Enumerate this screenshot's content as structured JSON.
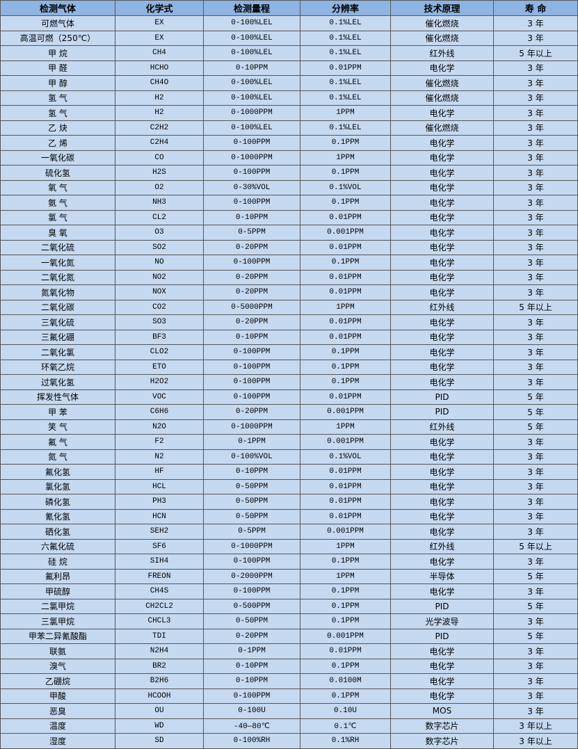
{
  "table": {
    "headers": [
      "检测气体",
      "化学式",
      "检测量程",
      "分辨率",
      "技术原理",
      "寿 命"
    ],
    "rows": [
      [
        "可燃气体",
        "EX",
        "0-100%LEL",
        "0.1%LEL",
        "催化燃烧",
        "3 年"
      ],
      [
        "高温可燃（250℃）",
        "EX",
        "0-100%LEL",
        "0.1%LEL",
        "催化燃烧",
        "3 年"
      ],
      [
        "甲 烷",
        "CH4",
        "0-100%LEL",
        "0.1%LEL",
        "红外线",
        "5 年以上"
      ],
      [
        "甲 醛",
        "HCHO",
        "0-10PPM",
        "0.01PPM",
        "电化学",
        "3 年"
      ],
      [
        "甲 醇",
        "CH4O",
        "0-100%LEL",
        "0.1%LEL",
        "催化燃烧",
        "3 年"
      ],
      [
        "氢 气",
        "H2",
        "0-100%LEL",
        "0.1%LEL",
        "催化燃烧",
        "3 年"
      ],
      [
        "氢 气",
        "H2",
        "0-1000PPM",
        "1PPM",
        "电化学",
        "3 年"
      ],
      [
        "乙 炔",
        "C2H2",
        "0-100%LEL",
        "0.1%LEL",
        "催化燃烧",
        "3 年"
      ],
      [
        "乙 烯",
        "C2H4",
        "0-100PPM",
        "0.1PPM",
        "电化学",
        "3 年"
      ],
      [
        "一氧化碳",
        "CO",
        "0-1000PPM",
        "1PPM",
        "电化学",
        "3 年"
      ],
      [
        "硫化氢",
        "H2S",
        "0-100PPM",
        "0.1PPM",
        "电化学",
        "3 年"
      ],
      [
        "氧 气",
        "O2",
        "0-30%VOL",
        "0.1%VOL",
        "电化学",
        "3 年"
      ],
      [
        "氨 气",
        "NH3",
        "0-100PPM",
        "0.1PPM",
        "电化学",
        "3 年"
      ],
      [
        "氯 气",
        "CL2",
        "0-10PPM",
        "0.01PPM",
        "电化学",
        "3 年"
      ],
      [
        "臭 氧",
        "O3",
        "0-5PPM",
        "0.001PPM",
        "电化学",
        "3 年"
      ],
      [
        "二氧化硫",
        "SO2",
        "0-20PPM",
        "0.01PPM",
        "电化学",
        "3 年"
      ],
      [
        "一氧化氮",
        "NO",
        "0-100PPM",
        "0.1PPM",
        "电化学",
        "3 年"
      ],
      [
        "二氧化氮",
        "NO2",
        "0-20PPM",
        "0.01PPM",
        "电化学",
        "3 年"
      ],
      [
        "氮氧化物",
        "NOX",
        "0-20PPM",
        "0.01PPM",
        "电化学",
        "3 年"
      ],
      [
        "二氧化碳",
        "CO2",
        "0-5000PPM",
        "1PPM",
        "红外线",
        "5 年以上"
      ],
      [
        "三氧化硫",
        "SO3",
        "0-20PPM",
        "0.01PPM",
        "电化学",
        "3 年"
      ],
      [
        "三氟化硼",
        "BF3",
        "0-10PPM",
        "0.01PPM",
        "电化学",
        "3 年"
      ],
      [
        "二氧化氯",
        "CLO2",
        "0-100PPM",
        "0.1PPM",
        "电化学",
        "3 年"
      ],
      [
        "环氧乙烷",
        "ETO",
        "0-100PPM",
        "0.1PPM",
        "电化学",
        "3 年"
      ],
      [
        "过氧化氢",
        "H2O2",
        "0-100PPM",
        "0.1PPM",
        "电化学",
        "3 年"
      ],
      [
        "挥发性气体",
        "VOC",
        "0-100PPM",
        "0.01PPM",
        "PID",
        "5 年"
      ],
      [
        "甲 苯",
        "C6H6",
        "0-20PPM",
        "0.001PPM",
        "PID",
        "5 年"
      ],
      [
        "笑 气",
        "N2O",
        "0-1000PPM",
        "1PPM",
        "红外线",
        "5 年"
      ],
      [
        "氟 气",
        "F2",
        "0-1PPM",
        "0.001PPM",
        "电化学",
        "3 年"
      ],
      [
        "氮 气",
        "N2",
        "0-100%VOL",
        "0.1%VOL",
        "电化学",
        "3 年"
      ],
      [
        "氟化氢",
        "HF",
        "0-10PPM",
        "0.01PPM",
        "电化学",
        "3 年"
      ],
      [
        "氯化氢",
        "HCL",
        "0-50PPM",
        "0.01PPM",
        "电化学",
        "3 年"
      ],
      [
        "磷化氢",
        "PH3",
        "0-50PPM",
        "0.01PPM",
        "电化学",
        "3 年"
      ],
      [
        "氰化氢",
        "HCN",
        "0-50PPM",
        "0.01PPM",
        "电化学",
        "3 年"
      ],
      [
        "硒化氢",
        "SEH2",
        "0-5PPM",
        "0.001PPM",
        "电化学",
        "3 年"
      ],
      [
        "六氟化硫",
        "SF6",
        "0-1000PPM",
        "1PPM",
        "红外线",
        "5 年以上"
      ],
      [
        "硅 烷",
        "SIH4",
        "0-100PPM",
        "0.1PPM",
        "电化学",
        "3 年"
      ],
      [
        "氟利昂",
        "FREON",
        "0-2000PPM",
        "1PPM",
        "半导体",
        "5 年"
      ],
      [
        "甲硫醇",
        "CH4S",
        "0-100PPM",
        "0.1PPM",
        "电化学",
        "3 年"
      ],
      [
        "二氯甲烷",
        "CH2CL2",
        "0-500PPM",
        "0.1PPM",
        "PID",
        "5 年"
      ],
      [
        "三氯甲烷",
        "CHCL3",
        "0-50PPM",
        "0.1PPM",
        "光学波导",
        "3 年"
      ],
      [
        "甲苯二异氰酸酯",
        "TDI",
        "0-20PPM",
        "0.001PPM",
        "PID",
        "5 年"
      ],
      [
        "联氨",
        "N2H4",
        "0-1PPM",
        "0.01PPM",
        "电化学",
        "3 年"
      ],
      [
        "溴气",
        "BR2",
        "0-10PPM",
        "0.1PPM",
        "电化学",
        "3 年"
      ],
      [
        "乙硼烷",
        "B2H6",
        "0-10PPM",
        "0.0100M",
        "电化学",
        "3 年"
      ],
      [
        "甲酸",
        "HCOOH",
        "0-100PPM",
        "0.1PPM",
        "电化学",
        "3 年"
      ],
      [
        "恶臭",
        "OU",
        "0-100U",
        "0.10U",
        "MOS",
        "3 年"
      ],
      [
        "温度",
        "WD",
        "-40—80℃",
        "0.1℃",
        "数字芯片",
        "3 年以上"
      ],
      [
        "湿度",
        "SD",
        "0-100%RH",
        "0.1%RH",
        "数字芯片",
        "3 年以上"
      ]
    ]
  },
  "colors": {
    "header_bg": "#8db4e2",
    "row_bg": "#c5d9f1",
    "border": "#555555"
  }
}
